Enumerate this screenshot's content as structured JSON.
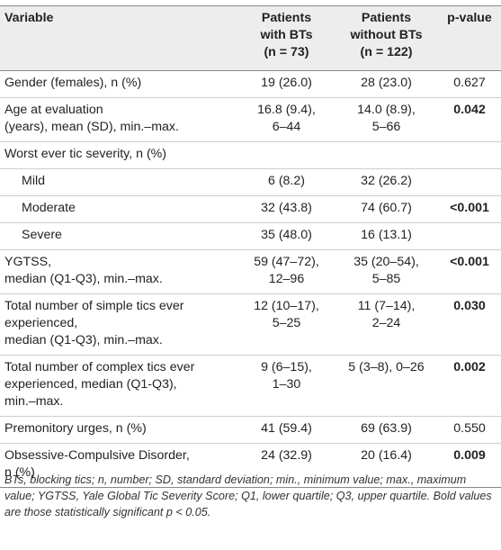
{
  "headers": {
    "variable": "Variable",
    "with_bts_line1": "Patients",
    "with_bts_line2": "with BTs",
    "with_bts_n": "(n = 73)",
    "without_bts_line1": "Patients",
    "without_bts_line2": "without BTs",
    "without_bts_n": "(n = 122)",
    "pvalue": "p-value"
  },
  "rows": {
    "gender": {
      "label": "Gender (females), n (%)",
      "with": "19 (26.0)",
      "without": "28 (23.0)",
      "p": "0.627"
    },
    "age": {
      "label_l1": "Age at evaluation",
      "label_l2": "(years), mean (SD), min.–max.",
      "with_l1": "16.8 (9.4),",
      "with_l2": "6–44",
      "without_l1": "14.0 (8.9),",
      "without_l2": "5–66",
      "p": "0.042"
    },
    "worst": {
      "label": "Worst ever tic severity, n (%)"
    },
    "mild": {
      "label": "Mild",
      "with": "6 (8.2)",
      "without": "32 (26.2)",
      "p": ""
    },
    "moderate": {
      "label": "Moderate",
      "with": "32 (43.8)",
      "without": "74 (60.7)",
      "p": "<0.001"
    },
    "severe": {
      "label": "Severe",
      "with": "35 (48.0)",
      "without": "16 (13.1)",
      "p": ""
    },
    "ygtss": {
      "label_l1": "YGTSS,",
      "label_l2": "median (Q1-Q3), min.–max.",
      "with_l1": "59 (47–72),",
      "with_l2": "12–96",
      "without_l1": "35 (20–54),",
      "without_l2": "5–85",
      "p": "<0.001"
    },
    "simple": {
      "label_l1": "Total number of simple tics ever",
      "label_l2": "experienced,",
      "label_l3": "median (Q1-Q3), min.–max.",
      "with_l1": "12 (10–17),",
      "with_l2": "5–25",
      "without_l1": "11 (7–14),",
      "without_l2": "2–24",
      "p": "0.030"
    },
    "complex": {
      "label_l1": "Total number of complex tics ever",
      "label_l2": "experienced, median (Q1-Q3),",
      "label_l3": "min.–max.",
      "with_l1": "9 (6–15),",
      "with_l2": "1–30",
      "without_l1": "5 (3–8), 0–26",
      "p": "0.002"
    },
    "urges": {
      "label": "Premonitory urges, n (%)",
      "with": "41 (59.4)",
      "without": "69 (63.9)",
      "p": "0.550"
    },
    "ocd": {
      "label_l1": "Obsessive-Compulsive Disorder,",
      "label_l2": "n (%)",
      "with": "24 (32.9)",
      "without": "20 (16.4)",
      "p": "0.009"
    }
  },
  "footnote": "BTs, blocking tics; n, number; SD, standard deviation; min., minimum value; max., maximum value; YGTSS, Yale Global Tic Severity Score; Q1, lower quartile; Q3, upper quartile. Bold values are those statistically significant p < 0.05."
}
